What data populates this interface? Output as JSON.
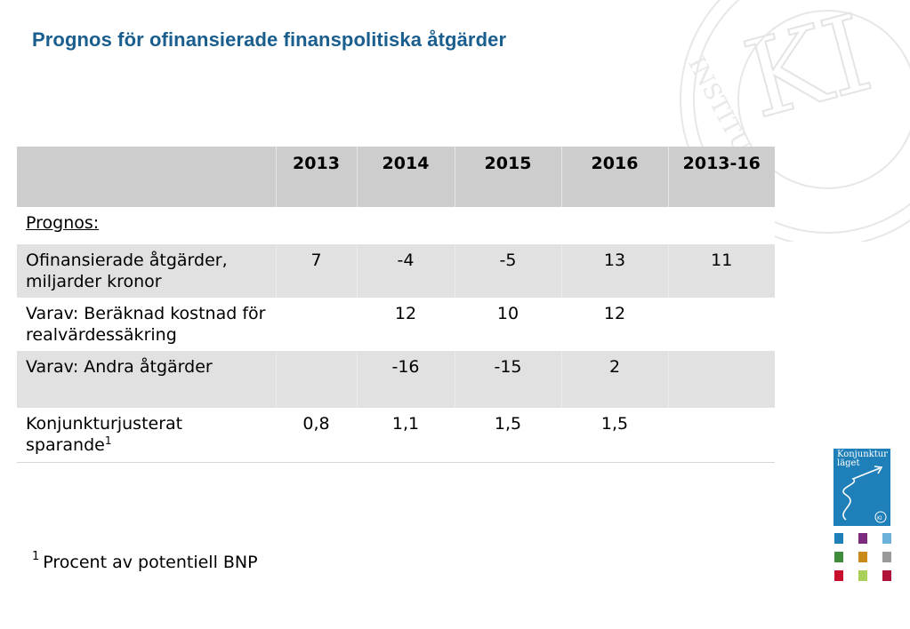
{
  "title": "Prognos för ofinansierade finanspolitiska åtgärder",
  "table": {
    "columns": [
      "",
      "2013",
      "2014",
      "2015",
      "2016",
      "2013-16"
    ],
    "section_label": "Prognos:",
    "rows": [
      {
        "label": "Ofinansierade åtgärder, miljarder kronor",
        "sup": "",
        "values": [
          "7",
          "-4",
          "-5",
          "13",
          "11"
        ]
      },
      {
        "label": "Varav: Beräknad kostnad för realvärdessäkring",
        "sup": "",
        "values": [
          "",
          "12",
          "10",
          "12",
          ""
        ]
      },
      {
        "label": "Varav: Andra åtgärder",
        "sup": "",
        "values": [
          "",
          "-16",
          "-15",
          "2",
          ""
        ]
      },
      {
        "label": "Konjunkturjusterat sparande",
        "sup": "1",
        "values": [
          "0,8",
          "1,1",
          "1,5",
          "1,5",
          ""
        ]
      }
    ]
  },
  "footnote": {
    "marker": "1",
    "text": "Procent av potentiell BNP"
  },
  "logo": {
    "seal_letters": "KI",
    "seal_text": "INSTITUTET",
    "cover_title_1": "Konjunktur",
    "cover_title_2": "läget",
    "cover_badge": "KI"
  },
  "colors": {
    "title": "#1a5e8e",
    "header_bg": "#cdcdcd",
    "row_shade": "#e1e1e1",
    "cover": "#1f7fb8"
  },
  "thumbnail_colors": [
    "#1f7fb8",
    "#7b2c7f",
    "#6ab0d8",
    "#3f8d3a",
    "#c98a1a",
    "#9a9a9a",
    "#c8102e",
    "#a9d15a",
    "#b0123a"
  ]
}
